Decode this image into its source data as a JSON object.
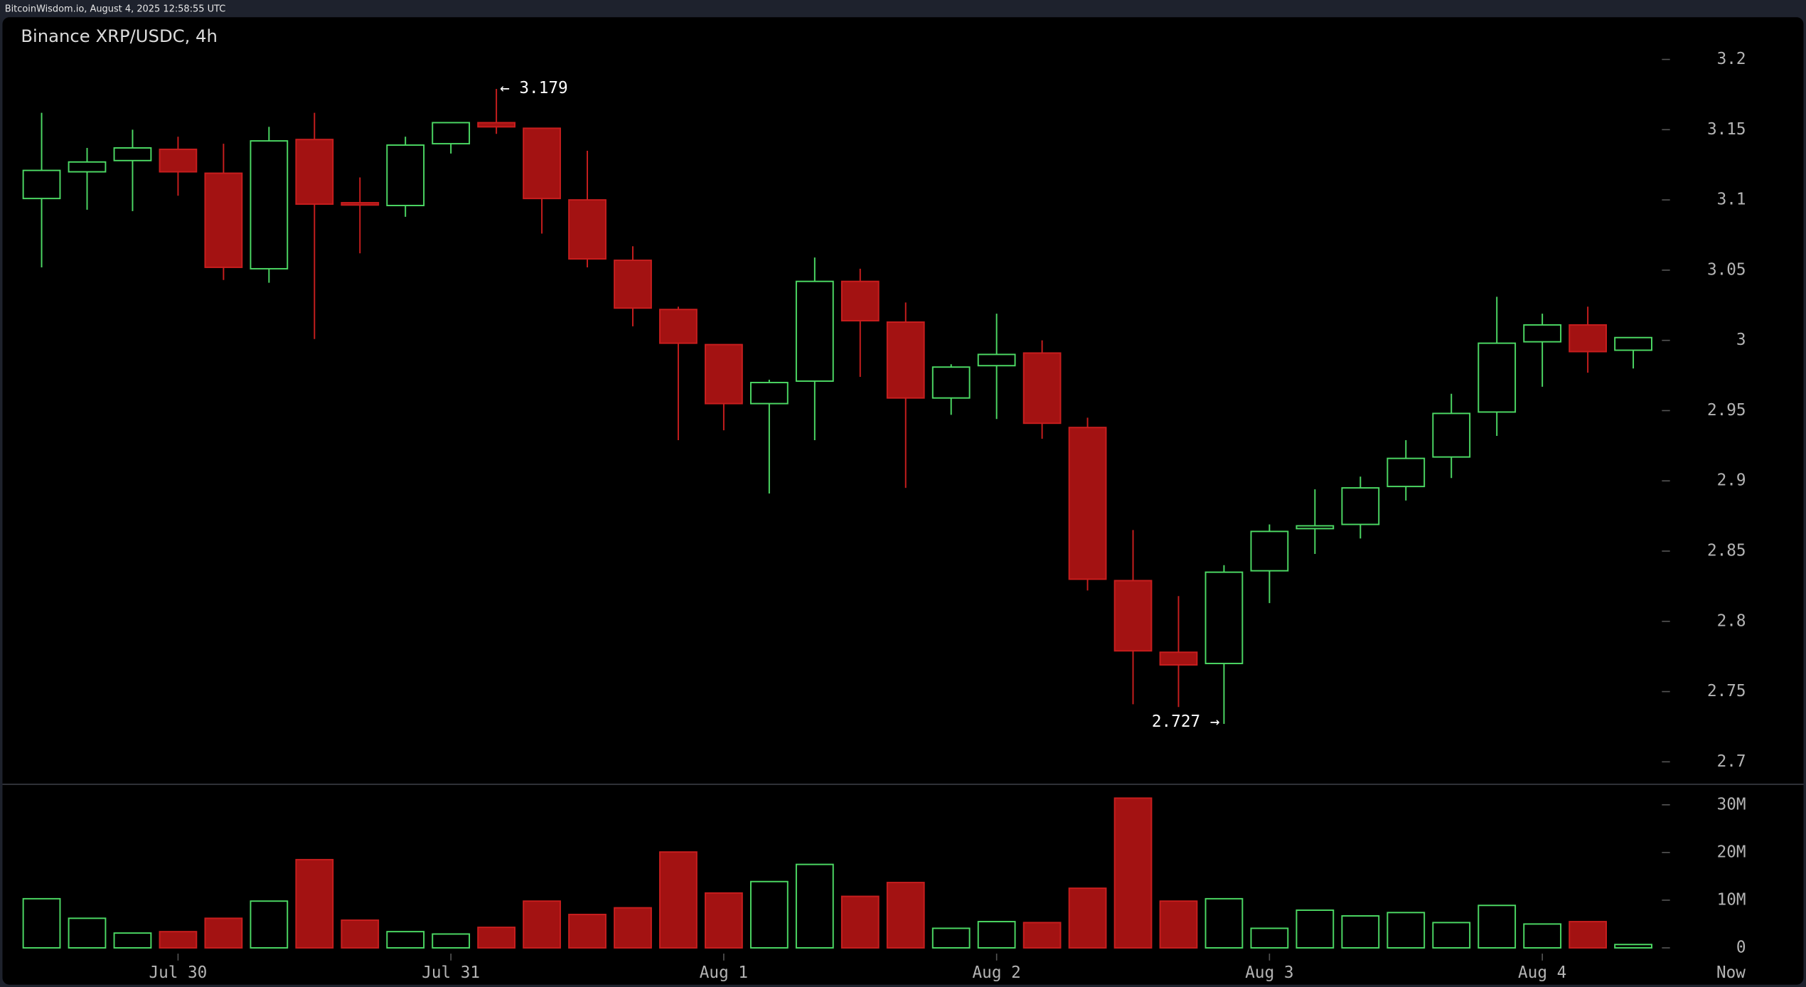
{
  "chart_data": {
    "type": "candlestick",
    "header": "BitcoinWisdom.io, August 4, 2025 12:58:55 UTC",
    "title": "Binance XRP/USDC, 4h",
    "categories": [
      null,
      null,
      null,
      "Jul 30",
      null,
      null,
      null,
      null,
      null,
      "Jul 31",
      null,
      null,
      null,
      null,
      null,
      "Aug 1",
      null,
      null,
      null,
      null,
      null,
      "Aug 2",
      null,
      null,
      null,
      null,
      null,
      "Aug 3",
      null,
      null,
      null,
      null,
      null,
      "Aug 4",
      null,
      null
    ],
    "now_label": "Now",
    "open": [
      3.101,
      3.12,
      3.128,
      3.136,
      3.119,
      3.051,
      3.143,
      3.098,
      3.096,
      3.14,
      3.155,
      3.151,
      3.1,
      3.057,
      3.022,
      2.997,
      2.955,
      2.971,
      3.042,
      3.013,
      2.959,
      2.982,
      2.991,
      2.938,
      2.829,
      2.778,
      2.77,
      2.836,
      2.866,
      2.869,
      2.896,
      2.917,
      2.949,
      2.999,
      3.011,
      2.993
    ],
    "high": [
      3.162,
      3.137,
      3.15,
      3.145,
      3.14,
      3.152,
      3.162,
      3.116,
      3.145,
      3.155,
      3.179,
      3.151,
      3.135,
      3.067,
      3.024,
      2.997,
      2.972,
      3.059,
      3.051,
      3.027,
      2.983,
      3.019,
      3.0,
      2.945,
      2.865,
      2.818,
      2.84,
      2.869,
      2.894,
      2.903,
      2.929,
      2.962,
      3.031,
      3.019,
      3.024,
      3.002
    ],
    "low": [
      3.052,
      3.093,
      3.092,
      3.103,
      3.043,
      3.041,
      3.001,
      3.062,
      3.088,
      3.133,
      3.147,
      3.076,
      3.052,
      3.01,
      2.929,
      2.936,
      2.891,
      2.929,
      2.974,
      2.895,
      2.947,
      2.944,
      2.93,
      2.822,
      2.741,
      2.739,
      2.727,
      2.813,
      2.848,
      2.859,
      2.886,
      2.902,
      2.932,
      2.967,
      2.977,
      2.98
    ],
    "close": [
      3.121,
      3.127,
      3.137,
      3.12,
      3.052,
      3.142,
      3.097,
      3.097,
      3.139,
      3.155,
      3.152,
      3.101,
      3.058,
      3.023,
      2.998,
      2.955,
      2.97,
      3.042,
      3.014,
      2.959,
      2.981,
      2.99,
      2.941,
      2.83,
      2.779,
      2.769,
      2.835,
      2.864,
      2.868,
      2.895,
      2.916,
      2.948,
      2.998,
      3.011,
      2.992,
      3.002
    ],
    "volume": [
      10300000,
      6200000,
      3100000,
      3400000,
      6200000,
      9800000,
      18500000,
      5800000,
      3400000,
      2900000,
      4300000,
      9800000,
      7000000,
      8400000,
      20100000,
      11500000,
      13900000,
      17500000,
      10800000,
      13700000,
      4100000,
      5500000,
      5300000,
      12500000,
      31400000,
      9800000,
      10300000,
      4100000,
      7900000,
      6700000,
      7400000,
      5300000,
      8900000,
      5000000,
      5500000,
      700000
    ],
    "up_color": "#4cd964",
    "down_color": "#a31212",
    "ylim": [
      2.684,
      3.23
    ],
    "yticks": [
      2.7,
      2.75,
      2.8,
      2.85,
      2.9,
      2.95,
      3,
      3.05,
      3.1,
      3.15,
      3.2
    ],
    "volume_ylim": [
      0,
      34300000
    ],
    "volume_yticks": [
      {
        "value": 0,
        "label": "0"
      },
      {
        "value": 10000000,
        "label": "10M"
      },
      {
        "value": 20000000,
        "label": "20M"
      },
      {
        "value": 30000000,
        "label": "30M"
      }
    ],
    "annotations": [
      "← 3.179",
      "2.727 →"
    ]
  }
}
